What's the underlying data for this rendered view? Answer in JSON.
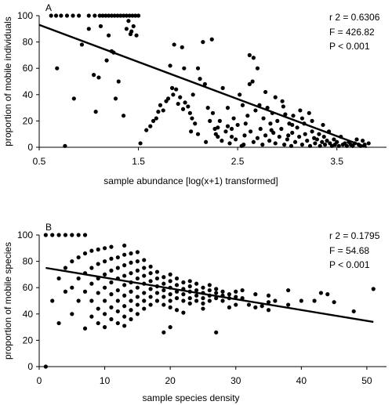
{
  "chart_data": [
    {
      "type": "scatter",
      "panel_label": "A",
      "xlabel": "sample abundance [log(x+1) transformed]",
      "ylabel": "proportion of mobile individuals",
      "xlim": [
        0.5,
        4.0
      ],
      "ylim": [
        0,
        100
      ],
      "x_ticks": [
        0.5,
        1.5,
        2.5,
        3.5
      ],
      "x_tick_labels": [
        "0.5",
        "1.5",
        "2.5",
        "3.5"
      ],
      "y_ticks": [
        0,
        20,
        40,
        60,
        80,
        100
      ],
      "y_tick_labels": [
        "0",
        "20",
        "40",
        "60",
        "80",
        "100"
      ],
      "stats": [
        "r 2 = 0.6306",
        "F = 426.82",
        "P < 0.001"
      ],
      "regression": {
        "x": [
          0.5,
          3.8
        ],
        "y": [
          93,
          0
        ]
      },
      "points": [
        [
          0.62,
          100
        ],
        [
          0.67,
          100
        ],
        [
          0.72,
          100
        ],
        [
          0.78,
          100
        ],
        [
          0.84,
          100
        ],
        [
          0.9,
          100
        ],
        [
          1.0,
          100
        ],
        [
          1.06,
          100
        ],
        [
          1.11,
          100
        ],
        [
          1.14,
          100
        ],
        [
          1.17,
          100
        ],
        [
          1.2,
          100
        ],
        [
          1.23,
          100
        ],
        [
          1.26,
          100
        ],
        [
          1.29,
          100
        ],
        [
          1.32,
          100
        ],
        [
          1.35,
          100
        ],
        [
          1.38,
          100
        ],
        [
          1.41,
          100
        ],
        [
          1.44,
          100
        ],
        [
          1.47,
          100
        ],
        [
          1.5,
          100
        ],
        [
          0.68,
          60
        ],
        [
          0.76,
          1
        ],
        [
          0.85,
          37
        ],
        [
          0.93,
          78
        ],
        [
          1.0,
          90
        ],
        [
          1.05,
          55
        ],
        [
          1.07,
          27
        ],
        [
          1.1,
          53
        ],
        [
          1.12,
          92
        ],
        [
          1.18,
          66
        ],
        [
          1.2,
          85
        ],
        [
          1.23,
          73
        ],
        [
          1.25,
          72
        ],
        [
          1.27,
          37
        ],
        [
          1.3,
          50
        ],
        [
          1.35,
          24
        ],
        [
          1.38,
          90
        ],
        [
          1.4,
          96
        ],
        [
          1.42,
          86
        ],
        [
          1.43,
          88
        ],
        [
          1.45,
          92
        ],
        [
          1.48,
          85
        ],
        [
          1.52,
          3
        ],
        [
          1.58,
          13
        ],
        [
          1.62,
          16
        ],
        [
          1.65,
          20
        ],
        [
          1.68,
          22
        ],
        [
          1.7,
          27
        ],
        [
          1.72,
          32
        ],
        [
          1.75,
          28
        ],
        [
          1.78,
          35
        ],
        [
          1.8,
          37
        ],
        [
          1.82,
          62
        ],
        [
          1.84,
          45
        ],
        [
          1.85,
          40
        ],
        [
          1.86,
          78
        ],
        [
          1.88,
          44
        ],
        [
          1.9,
          33
        ],
        [
          1.92,
          38
        ],
        [
          1.94,
          76
        ],
        [
          1.95,
          29
        ],
        [
          1.97,
          34
        ],
        [
          2.0,
          31
        ],
        [
          2.02,
          26
        ],
        [
          2.04,
          22
        ],
        [
          2.05,
          40
        ],
        [
          2.07,
          18
        ],
        [
          2.1,
          60
        ],
        [
          2.12,
          52
        ],
        [
          2.15,
          80
        ],
        [
          2.17,
          48
        ],
        [
          2.18,
          4
        ],
        [
          2.2,
          30
        ],
        [
          2.22,
          20
        ],
        [
          2.24,
          82
        ],
        [
          2.25,
          26
        ],
        [
          2.27,
          14
        ],
        [
          2.28,
          10
        ],
        [
          2.3,
          8
        ],
        [
          2.32,
          20
        ],
        [
          2.34,
          5
        ],
        [
          2.35,
          45
        ],
        [
          2.38,
          12
        ],
        [
          2.4,
          16
        ],
        [
          2.42,
          3
        ],
        [
          2.44,
          8
        ],
        [
          2.46,
          22
        ],
        [
          2.48,
          6
        ],
        [
          2.5,
          17
        ],
        [
          2.52,
          40
        ],
        [
          2.54,
          1
        ],
        [
          2.55,
          32
        ],
        [
          2.57,
          9
        ],
        [
          2.58,
          18
        ],
        [
          2.6,
          24
        ],
        [
          2.62,
          48
        ],
        [
          2.63,
          12
        ],
        [
          2.65,
          50
        ],
        [
          2.66,
          4
        ],
        [
          2.68,
          28
        ],
        [
          2.7,
          7
        ],
        [
          2.72,
          32
        ],
        [
          2.73,
          14
        ],
        [
          2.75,
          2
        ],
        [
          2.76,
          22
        ],
        [
          2.78,
          9
        ],
        [
          2.8,
          30
        ],
        [
          2.82,
          5
        ],
        [
          2.83,
          18
        ],
        [
          2.85,
          26
        ],
        [
          2.86,
          11
        ],
        [
          2.88,
          3
        ],
        [
          2.9,
          20
        ],
        [
          2.92,
          8
        ],
        [
          2.94,
          14
        ],
        [
          2.96,
          31
        ],
        [
          2.97,
          2
        ],
        [
          2.98,
          25
        ],
        [
          3.0,
          6
        ],
        [
          3.02,
          18
        ],
        [
          3.04,
          1
        ],
        [
          3.05,
          11
        ],
        [
          3.06,
          24
        ],
        [
          3.08,
          4
        ],
        [
          3.1,
          15
        ],
        [
          3.12,
          8
        ],
        [
          3.13,
          28
        ],
        [
          3.15,
          2
        ],
        [
          3.17,
          18
        ],
        [
          3.18,
          10
        ],
        [
          3.2,
          5
        ],
        [
          3.22,
          26
        ],
        [
          3.23,
          1
        ],
        [
          3.25,
          12
        ],
        [
          3.27,
          7
        ],
        [
          3.28,
          3
        ],
        [
          3.3,
          6
        ],
        [
          3.32,
          10
        ],
        [
          3.33,
          1
        ],
        [
          3.35,
          4
        ],
        [
          3.37,
          8
        ],
        [
          3.38,
          2
        ],
        [
          3.4,
          5
        ],
        [
          3.42,
          12
        ],
        [
          3.43,
          3
        ],
        [
          3.45,
          1
        ],
        [
          3.47,
          6
        ],
        [
          3.48,
          2
        ],
        [
          3.5,
          4
        ],
        [
          3.52,
          1
        ],
        [
          3.54,
          8
        ],
        [
          3.56,
          2
        ],
        [
          3.58,
          3
        ],
        [
          3.6,
          1
        ],
        [
          3.62,
          4
        ],
        [
          3.64,
          2
        ],
        [
          3.66,
          1
        ],
        [
          3.68,
          3
        ],
        [
          3.7,
          6
        ],
        [
          3.72,
          2
        ],
        [
          3.74,
          1
        ],
        [
          3.76,
          5
        ],
        [
          3.78,
          2
        ],
        [
          3.82,
          3
        ],
        [
          3.25,
          20
        ],
        [
          3.15,
          22
        ],
        [
          3.05,
          17
        ],
        [
          2.95,
          35
        ],
        [
          2.88,
          38
        ],
        [
          2.78,
          42
        ],
        [
          2.7,
          60
        ],
        [
          2.66,
          68
        ],
        [
          2.62,
          70
        ],
        [
          2.4,
          30
        ],
        [
          2.3,
          15
        ],
        [
          2.1,
          10
        ],
        [
          1.96,
          60
        ],
        [
          2.03,
          12
        ],
        [
          2.44,
          14
        ],
        [
          2.56,
          2
        ],
        [
          2.84,
          13
        ],
        [
          3.01,
          9
        ],
        [
          3.36,
          17
        ]
      ]
    },
    {
      "type": "scatter",
      "panel_label": "B",
      "xlabel": "sample species density",
      "ylabel": "proportion of mobile species",
      "xlim": [
        0,
        53
      ],
      "ylim": [
        0,
        100
      ],
      "x_ticks": [
        0,
        10,
        20,
        30,
        40,
        50
      ],
      "x_tick_labels": [
        "0",
        "10",
        "20",
        "30",
        "40",
        "50"
      ],
      "y_ticks": [
        0,
        20,
        40,
        60,
        80,
        100
      ],
      "y_tick_labels": [
        "0",
        "20",
        "40",
        "60",
        "80",
        "100"
      ],
      "stats": [
        "r 2 = 0.1795",
        "F = 54.68",
        "P < 0.001"
      ],
      "regression": {
        "x": [
          1,
          51
        ],
        "y": [
          75,
          34
        ]
      },
      "points": [
        [
          1,
          0
        ],
        [
          1,
          100
        ],
        [
          2,
          100
        ],
        [
          3,
          100
        ],
        [
          4,
          100
        ],
        [
          5,
          100
        ],
        [
          6,
          100
        ],
        [
          7,
          100
        ],
        [
          2,
          50
        ],
        [
          3,
          33
        ],
        [
          3,
          67
        ],
        [
          4,
          75
        ],
        [
          4,
          57
        ],
        [
          5,
          80
        ],
        [
          5,
          40
        ],
        [
          5,
          60
        ],
        [
          6,
          83
        ],
        [
          6,
          67
        ],
        [
          6,
          50
        ],
        [
          7,
          86
        ],
        [
          7,
          71
        ],
        [
          7,
          57
        ],
        [
          7,
          29
        ],
        [
          8,
          88
        ],
        [
          8,
          75
        ],
        [
          8,
          63
        ],
        [
          8,
          50
        ],
        [
          8,
          38
        ],
        [
          9,
          89
        ],
        [
          9,
          78
        ],
        [
          9,
          67
        ],
        [
          9,
          56
        ],
        [
          9,
          44
        ],
        [
          9,
          33
        ],
        [
          10,
          90
        ],
        [
          10,
          80
        ],
        [
          10,
          70
        ],
        [
          10,
          60
        ],
        [
          10,
          50
        ],
        [
          10,
          40
        ],
        [
          10,
          30
        ],
        [
          11,
          91
        ],
        [
          11,
          82
        ],
        [
          11,
          73
        ],
        [
          11,
          64
        ],
        [
          11,
          55
        ],
        [
          11,
          45
        ],
        [
          11,
          36
        ],
        [
          12,
          83
        ],
        [
          12,
          75
        ],
        [
          12,
          67
        ],
        [
          12,
          58
        ],
        [
          12,
          50
        ],
        [
          12,
          42
        ],
        [
          12,
          33
        ],
        [
          13,
          92
        ],
        [
          13,
          85
        ],
        [
          13,
          77
        ],
        [
          13,
          69
        ],
        [
          13,
          62
        ],
        [
          13,
          54
        ],
        [
          13,
          46
        ],
        [
          13,
          38
        ],
        [
          13,
          31
        ],
        [
          14,
          86
        ],
        [
          14,
          79
        ],
        [
          14,
          71
        ],
        [
          14,
          64
        ],
        [
          14,
          57
        ],
        [
          14,
          50
        ],
        [
          14,
          43
        ],
        [
          14,
          36
        ],
        [
          15,
          87
        ],
        [
          15,
          80
        ],
        [
          15,
          73
        ],
        [
          15,
          67
        ],
        [
          15,
          60
        ],
        [
          15,
          53
        ],
        [
          15,
          47
        ],
        [
          15,
          40
        ],
        [
          16,
          81
        ],
        [
          16,
          75
        ],
        [
          16,
          69
        ],
        [
          16,
          63
        ],
        [
          16,
          56
        ],
        [
          16,
          50
        ],
        [
          16,
          44
        ],
        [
          17,
          76
        ],
        [
          17,
          71
        ],
        [
          17,
          65
        ],
        [
          17,
          59
        ],
        [
          17,
          53
        ],
        [
          17,
          47
        ],
        [
          18,
          72
        ],
        [
          18,
          67
        ],
        [
          18,
          61
        ],
        [
          18,
          56
        ],
        [
          18,
          50
        ],
        [
          19,
          68
        ],
        [
          19,
          63
        ],
        [
          19,
          58
        ],
        [
          19,
          53
        ],
        [
          19,
          47
        ],
        [
          19,
          26
        ],
        [
          20,
          70
        ],
        [
          20,
          65
        ],
        [
          20,
          60
        ],
        [
          20,
          55
        ],
        [
          20,
          50
        ],
        [
          20,
          45
        ],
        [
          20,
          30
        ],
        [
          21,
          67
        ],
        [
          21,
          62
        ],
        [
          21,
          57
        ],
        [
          21,
          52
        ],
        [
          21,
          43
        ],
        [
          22,
          64
        ],
        [
          22,
          59
        ],
        [
          22,
          55
        ],
        [
          22,
          50
        ],
        [
          22,
          41
        ],
        [
          23,
          65
        ],
        [
          23,
          61
        ],
        [
          23,
          57
        ],
        [
          23,
          52
        ],
        [
          23,
          48
        ],
        [
          24,
          63
        ],
        [
          24,
          58
        ],
        [
          24,
          54
        ],
        [
          24,
          50
        ],
        [
          25,
          60
        ],
        [
          25,
          56
        ],
        [
          25,
          52
        ],
        [
          25,
          48
        ],
        [
          25,
          44
        ],
        [
          26,
          62
        ],
        [
          26,
          58
        ],
        [
          26,
          54
        ],
        [
          26,
          50
        ],
        [
          27,
          59
        ],
        [
          27,
          56
        ],
        [
          27,
          52
        ],
        [
          27,
          26
        ],
        [
          28,
          57
        ],
        [
          28,
          54
        ],
        [
          28,
          50
        ],
        [
          29,
          55
        ],
        [
          29,
          52
        ],
        [
          29,
          45
        ],
        [
          30,
          57
        ],
        [
          30,
          53
        ],
        [
          30,
          47
        ],
        [
          31,
          58
        ],
        [
          31,
          52
        ],
        [
          32,
          47
        ],
        [
          33,
          55
        ],
        [
          33,
          45
        ],
        [
          35,
          54
        ],
        [
          34,
          46
        ],
        [
          35,
          49
        ],
        [
          36,
          50
        ],
        [
          35,
          43
        ],
        [
          38,
          58
        ],
        [
          38,
          47
        ],
        [
          40,
          50
        ],
        [
          42,
          50
        ],
        [
          43,
          56
        ],
        [
          44,
          55
        ],
        [
          45,
          49
        ],
        [
          48,
          42
        ],
        [
          51,
          59
        ]
      ]
    }
  ]
}
